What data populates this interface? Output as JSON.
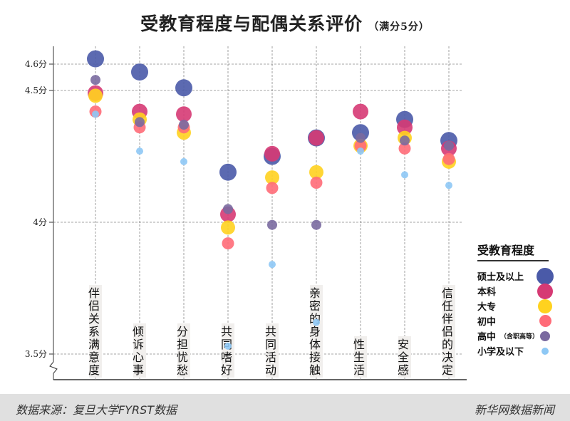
{
  "title": "受教育程度与配偶关系评价",
  "subtitle": "（满分5分）",
  "footer": {
    "source": "数据来源：复旦大学FYRST数据",
    "brand": "新华网数据新闻"
  },
  "chart_data": {
    "type": "scatter",
    "title": "受教育程度与配偶关系评价",
    "ylim": [
      3.45,
      4.65
    ],
    "yticks": [
      {
        "v": 3.5,
        "label": "3.5分"
      },
      {
        "v": 4,
        "label": "4分"
      },
      {
        "v": 4.5,
        "label": "4.5分"
      },
      {
        "v": 4.6,
        "label": "4.6分"
      }
    ],
    "categories": [
      "伴侣关系满意度",
      "倾诉心事",
      "分担忧愁",
      "共同嗜好",
      "共同活动",
      "亲密的身体接触",
      "性生活",
      "安全感",
      "信任伴侣的决定"
    ],
    "legend_title": "受教育程度",
    "series": [
      {
        "name": "硕士及以上",
        "note": "",
        "color": "#4a5aa8",
        "values": [
          4.62,
          4.57,
          4.51,
          4.19,
          4.25,
          4.32,
          4.34,
          4.39,
          4.31
        ]
      },
      {
        "name": "本科",
        "note": "",
        "color": "#d63a74",
        "values": [
          4.49,
          4.42,
          4.41,
          4.03,
          4.26,
          4.32,
          4.42,
          4.36,
          4.28
        ]
      },
      {
        "name": "大专",
        "note": "",
        "color": "#ffd21f",
        "values": [
          4.48,
          4.39,
          4.34,
          3.98,
          4.17,
          4.19,
          4.29,
          4.32,
          4.23
        ]
      },
      {
        "name": "初中",
        "note": "",
        "color": "#ff6b78",
        "values": [
          4.42,
          4.36,
          4.36,
          3.92,
          4.13,
          4.15,
          4.29,
          4.28,
          4.24
        ]
      },
      {
        "name": "高中",
        "note": "（含职高等）",
        "color": "#7a6aa0",
        "values": [
          4.54,
          4.38,
          4.37,
          4.05,
          3.99,
          3.99,
          4.32,
          4.31,
          4.29
        ]
      },
      {
        "name": "小学及以下",
        "note": "",
        "color": "#8ec8f5",
        "values": [
          4.41,
          4.27,
          4.23,
          3.53,
          3.84,
          3.62,
          4.27,
          4.18,
          4.14
        ]
      }
    ]
  }
}
